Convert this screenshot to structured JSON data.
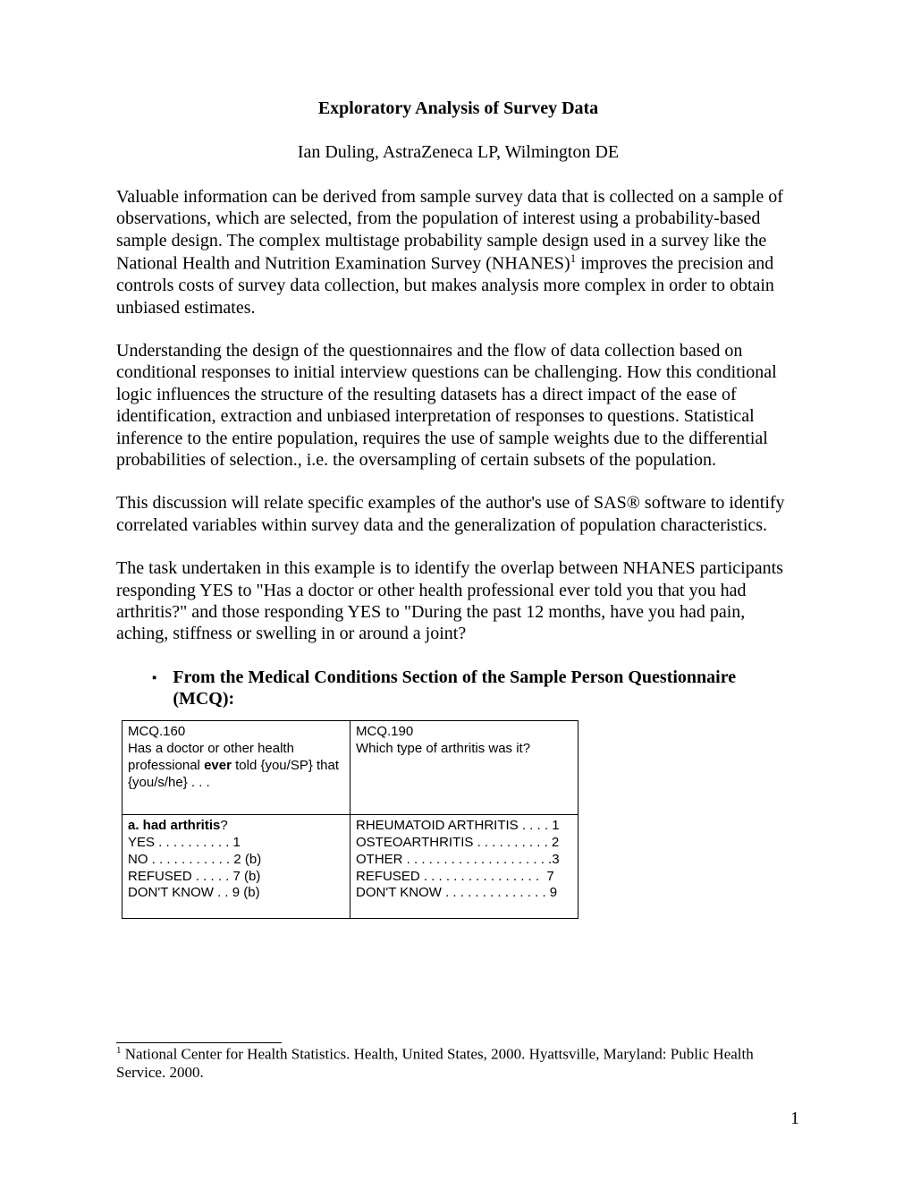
{
  "title": "Exploratory Analysis of Survey Data",
  "author": "Ian Duling, AstraZeneca LP, Wilmington DE",
  "para1_a": "Valuable information can be derived from sample survey data that is collected on a sample of observations, which are selected, from the population of interest using a probability-based sample design.   The complex multistage probability sample design used in a survey like the National Health and Nutrition Examination Survey (NHANES)",
  "para1_sup": "1",
  "para1_b": " improves the precision and controls costs of survey data collection, but makes analysis more complex in order to obtain unbiased estimates.",
  "para2": "Understanding the design of the questionnaires and the flow of data collection based on conditional responses to initial interview questions can be challenging.  How this conditional logic influences the structure of the resulting datasets has a direct impact of the ease of identification, extraction and unbiased interpretation of responses to questions. Statistical inference to the entire population, requires the use of sample weights due to the differential probabilities of selection., i.e. the oversampling of certain subsets of the population.",
  "para3": "This discussion will relate specific examples of the author's use of SAS® software to identify correlated variables within survey data and the generalization of population characteristics.",
  "para4": "The task undertaken in this example is to identify the overlap between NHANES participants responding YES to \"Has a doctor or other health professional ever told you that you had arthritis?\" and those responding YES to \"During the past 12 months, have you had pain, aching, stiffness or swelling in or around a joint?",
  "section_title": "From the Medical Conditions Section of the Sample Person Questionnaire (MCQ):",
  "bullet": "▪",
  "table": {
    "r1c1_a": "MCQ.160",
    "r1c1_b": "Has a doctor or other health professional ",
    "r1c1_bold": "ever",
    "r1c1_c": " told {you/SP} that {you/s/he} . . .",
    "r1c2_a": "MCQ.190",
    "r1c2_b": "Which type of arthritis was it?",
    "r2c1_bold": "a. had arthritis",
    "r2c1_q": "?",
    "r2c1_lines": "YES . . . . . . . . . . 1\nNO . . . . . . . . . . . 2 (b)\nREFUSED . . . . . 7 (b)\nDON'T KNOW . . 9 (b)",
    "r2c2_lines": "RHEUMATOID ARTHRITIS . . . . 1\nOSTEOARTHRITIS . . . . . . . . . . 2\nOTHER . . . . . . . . . . . . . . . . . . . .3\nREFUSED . . . . . . . . . . . . . . . .  7\nDON'T KNOW . . . . . . . . . . . . . . 9"
  },
  "footnote_sup": "1",
  "footnote": " National Center for Health Statistics. Health, United States, 2000. Hyattsville, Maryland: Public Health Service. 2000.",
  "page_number": "1"
}
